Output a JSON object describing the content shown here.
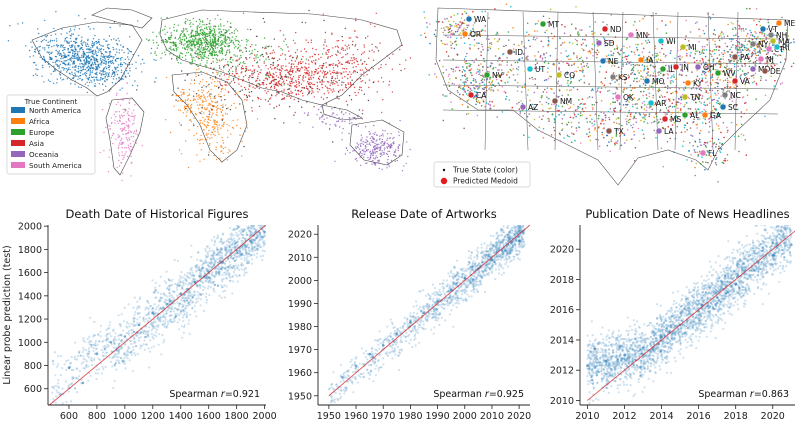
{
  "colors": {
    "north_america": "#1f77b4",
    "africa": "#ff7f0e",
    "europe": "#2ca02c",
    "asia": "#d62728",
    "oceania": "#9467bd",
    "south_america": "#e377c2",
    "scatter_point": "#1f77b4",
    "identity_line": "#d62728",
    "medoid": "#e41a1c"
  },
  "world_map": {
    "legend_title": "True Continent",
    "legend_items": [
      {
        "label": "North America",
        "color": "#1f77b4"
      },
      {
        "label": "Africa",
        "color": "#ff7f0e"
      },
      {
        "label": "Europe",
        "color": "#2ca02c"
      },
      {
        "label": "Asia",
        "color": "#d62728"
      },
      {
        "label": "Oceania",
        "color": "#9467bd"
      },
      {
        "label": "South America",
        "color": "#e377c2"
      }
    ]
  },
  "us_map": {
    "legend_items": [
      {
        "label": "True State (color)",
        "marker": "dot"
      },
      {
        "label": "Predicted Medoid",
        "marker": "circle"
      }
    ],
    "state_labels": [
      "WA",
      "OR",
      "MT",
      "ND",
      "SD",
      "ID",
      "MN",
      "WI",
      "MI",
      "NY",
      "NE",
      "IA",
      "IL",
      "IN",
      "OH",
      "PA",
      "NJ",
      "UT",
      "CO",
      "KS",
      "MO",
      "KY",
      "WV",
      "VA",
      "MD",
      "DE",
      "CT",
      "RI",
      "MA",
      "NH",
      "VT",
      "ME",
      "NV",
      "CA",
      "AZ",
      "NM",
      "OK",
      "AR",
      "TN",
      "NC",
      "SC",
      "GA",
      "AL",
      "MS",
      "LA",
      "TX",
      "FL"
    ]
  },
  "chart_data": [
    {
      "type": "scatter",
      "title": "Death Date of Historical Figures",
      "xlabel": "",
      "ylabel": "Linear probe prediction (test)",
      "xlim": [
        450,
        2010
      ],
      "ylim": [
        460,
        2010
      ],
      "xticks": [
        600,
        800,
        1000,
        1200,
        1400,
        1600,
        1800,
        2000
      ],
      "yticks": [
        600,
        800,
        1000,
        1200,
        1400,
        1600,
        1800,
        2000
      ],
      "identity_line": [
        [
          460,
          460
        ],
        [
          2010,
          2010
        ]
      ],
      "annotation": "Spearman r=0.921",
      "annotation_prefix": "Spearman",
      "annotation_value": "=0.921",
      "points": [
        [
          600,
          780
        ],
        [
          700,
          650
        ],
        [
          800,
          900
        ],
        [
          900,
          1000
        ],
        [
          1000,
          1050
        ],
        [
          1100,
          1150
        ],
        [
          1200,
          1250
        ],
        [
          1300,
          1330
        ],
        [
          1400,
          1420
        ],
        [
          1500,
          1520
        ],
        [
          1600,
          1610
        ],
        [
          1700,
          1690
        ],
        [
          1800,
          1790
        ],
        [
          1900,
          1870
        ],
        [
          2000,
          1950
        ]
      ]
    },
    {
      "type": "scatter",
      "title": "Release Date of Artworks",
      "xlabel": "",
      "ylabel": "",
      "xlim": [
        1946,
        2024
      ],
      "ylim": [
        1946,
        2024
      ],
      "xticks": [
        1950,
        1960,
        1970,
        1980,
        1990,
        2000,
        2010,
        2020
      ],
      "yticks": [
        1950,
        1960,
        1970,
        1980,
        1990,
        2000,
        2010,
        2020
      ],
      "identity_line": [
        [
          1950,
          1950
        ],
        [
          2024,
          2024
        ]
      ],
      "annotation": "Spearman r=0.925",
      "annotation_prefix": "Spearman",
      "annotation_value": "=0.925",
      "points": [
        [
          1955,
          1958
        ],
        [
          1960,
          1963
        ],
        [
          1965,
          1968
        ],
        [
          1970,
          1972
        ],
        [
          1975,
          1977
        ],
        [
          1980,
          1982
        ],
        [
          1985,
          1986
        ],
        [
          1990,
          1991
        ],
        [
          1995,
          1996
        ],
        [
          2000,
          2001
        ],
        [
          2005,
          2005
        ],
        [
          2010,
          2009
        ],
        [
          2015,
          2013
        ],
        [
          2020,
          2017
        ]
      ]
    },
    {
      "type": "scatter",
      "title": "Publication Date of News Headlines",
      "xlabel": "",
      "ylabel": "",
      "xlim": [
        2009.6,
        2021.2
      ],
      "ylim": [
        2009.7,
        2021.6
      ],
      "xticks": [
        2010,
        2012,
        2014,
        2016,
        2018,
        2020
      ],
      "yticks": [
        2010,
        2012,
        2014,
        2016,
        2018,
        2020
      ],
      "identity_line": [
        [
          2010,
          2010
        ],
        [
          2021.2,
          2021.2
        ]
      ],
      "annotation": "Spearman r=0.863",
      "annotation_prefix": "Spearman",
      "annotation_value": "=0.863",
      "points": [
        [
          2010,
          2012.3
        ],
        [
          2011,
          2012.6
        ],
        [
          2012,
          2013.0
        ],
        [
          2013,
          2013.5
        ],
        [
          2014,
          2014.2
        ],
        [
          2015,
          2015.0
        ],
        [
          2016,
          2015.9
        ],
        [
          2017,
          2016.8
        ],
        [
          2018,
          2017.7
        ],
        [
          2019,
          2018.6
        ],
        [
          2020,
          2019.6
        ],
        [
          2021,
          2020.3
        ]
      ]
    }
  ]
}
